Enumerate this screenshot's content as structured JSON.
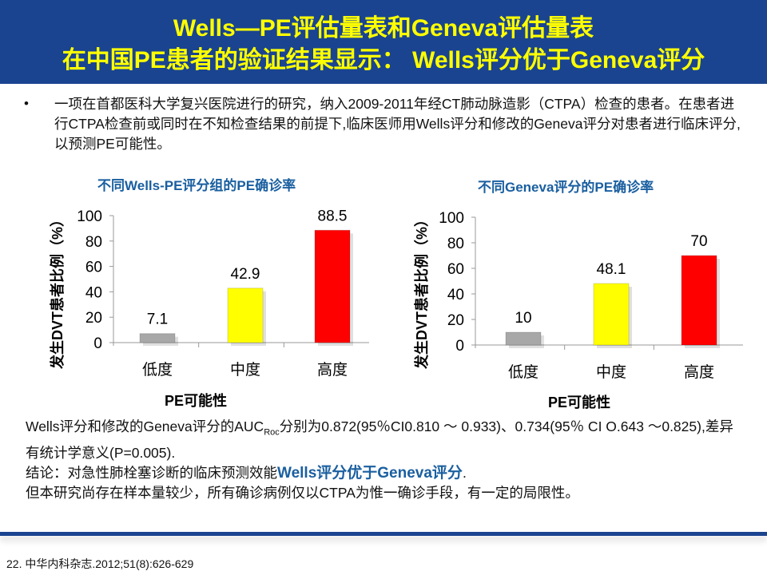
{
  "header": {
    "line1": "Wells—PE评估量表和Geneva评估量表",
    "line2": "在中国PE患者的验证结果显示： Wells评分优于Geneva评分"
  },
  "intro": {
    "bullet": "•",
    "text": "一项在首都医科大学复兴医院进行的研究，纳入2009-2011年经CT肺动脉造影（CTPA）检查的患者。在患者进行CTPA检查前或同时在不知检查结果的前提下,临床医师用Wells评分和修改的Geneva评分对患者进行临床评分,以预测PE可能性。"
  },
  "chart_data": [
    {
      "type": "bar",
      "title": "不同Wells-PE评分组的PE确诊率",
      "categories": [
        "低度",
        "中度",
        "高度"
      ],
      "values": [
        7.1,
        42.9,
        88.5
      ],
      "labels": [
        "7.1",
        "42.9",
        "88.5"
      ],
      "colors": [
        "#a8a8a8",
        "#ffff00",
        "#ff0000"
      ],
      "ylabel": "发生DVT患者比例（%）",
      "xlabel": "PE可能性",
      "ylim": [
        0,
        100
      ],
      "yticks": [
        "0",
        "20",
        "40",
        "60",
        "80",
        "100"
      ]
    },
    {
      "type": "bar",
      "title": "不同Geneva评分的PE确诊率",
      "categories": [
        "低度",
        "中度",
        "高度"
      ],
      "values": [
        10,
        48.1,
        70
      ],
      "labels": [
        "10",
        "48.1",
        "70"
      ],
      "colors": [
        "#a8a8a8",
        "#ffff00",
        "#ff0000"
      ],
      "ylabel": "发生DVT患者比例（%）",
      "xlabel": "PE可能性",
      "ylim": [
        0,
        100
      ],
      "yticks": [
        "0",
        "20",
        "40",
        "60",
        "80",
        "100"
      ]
    }
  ],
  "conclusion": {
    "auc_pre": "Wells评分和修改的Geneva评分的AUC",
    "auc_sub": "Roc",
    "auc_post": "分别为0.872(95％CI0.810 ～ 0.933)、0.734(95％ CI O.643 ～0.825),差异有统计学意义(P=0.005).",
    "concl_pre": "结论：对急性肺栓塞诊断的临床预测效能",
    "concl_bold": "Wells评分优于Geneva评分",
    "concl_post": ".",
    "limit": "但本研究尚存在样本量较少，所有确诊病例仅以CTPA为惟一确诊手段，有一定的局限性。"
  },
  "footer": {
    "reference": "22. 中华内科杂志.2012;51(8):626-629"
  }
}
